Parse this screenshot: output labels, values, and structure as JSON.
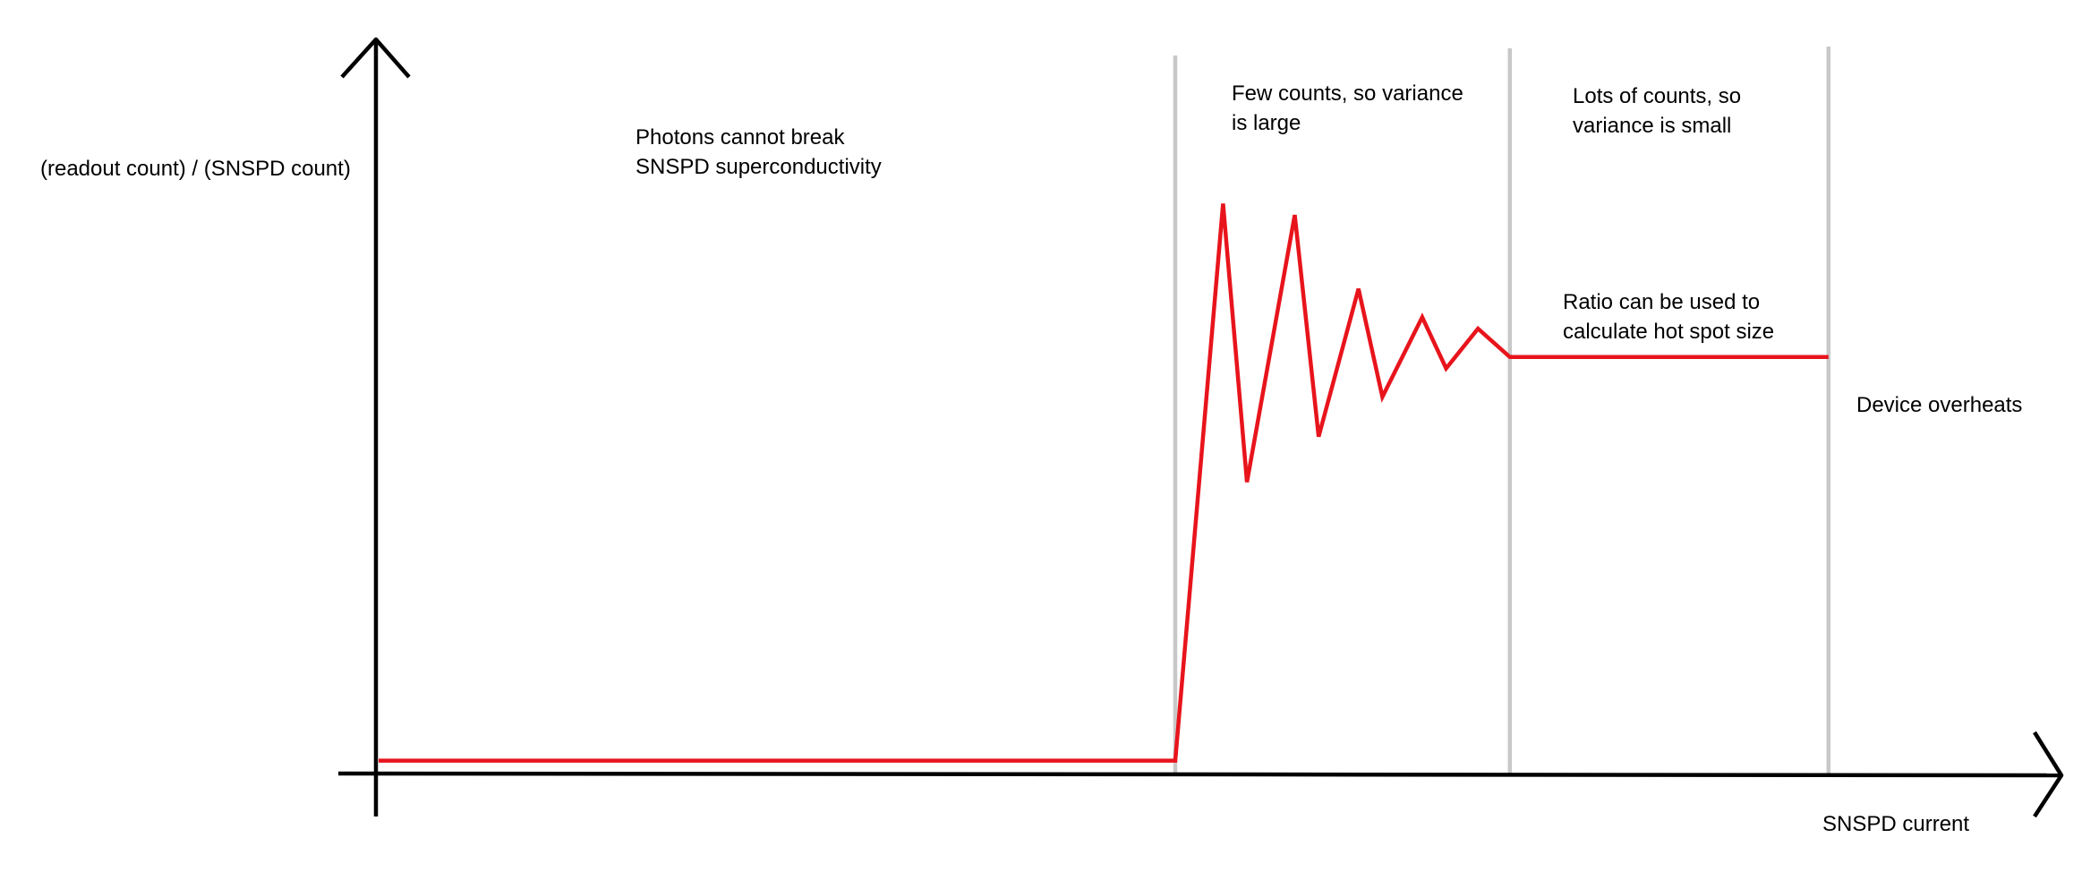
{
  "chart_data": {
    "type": "line",
    "title": "",
    "xlabel": "SNSPD current",
    "ylabel": "(readout count) / (SNSPD count)",
    "grid": false,
    "legend": "none",
    "series": [
      {
        "color": "#e8141c",
        "points": [
          [
            0.0,
            0.01
          ],
          [
            1.0,
            0.01
          ],
          [
            1.06,
            0.99
          ],
          [
            1.09,
            0.5
          ],
          [
            1.15,
            0.97
          ],
          [
            1.18,
            0.58
          ],
          [
            1.23,
            0.84
          ],
          [
            1.26,
            0.65
          ],
          [
            1.31,
            0.79
          ],
          [
            1.34,
            0.7
          ],
          [
            1.38,
            0.77
          ],
          [
            1.42,
            0.72
          ],
          [
            1.82,
            0.72
          ]
        ]
      }
    ],
    "regions": [
      {
        "label": [
          "Photons cannot break",
          "SNSPD superconductivity"
        ]
      },
      {
        "label": [
          "Few counts, so variance",
          "is large"
        ]
      },
      {
        "label": [
          "Lots of counts, so",
          "variance is small"
        ]
      },
      {
        "label": [
          "Ratio can be used to",
          "calculate hot spot size"
        ]
      },
      {
        "label": [
          "Device overheats"
        ]
      }
    ],
    "dividers": [
      1.0,
      1.42,
      1.82
    ],
    "axis_color": "#000000",
    "divider_color": "#c8c8c8"
  }
}
